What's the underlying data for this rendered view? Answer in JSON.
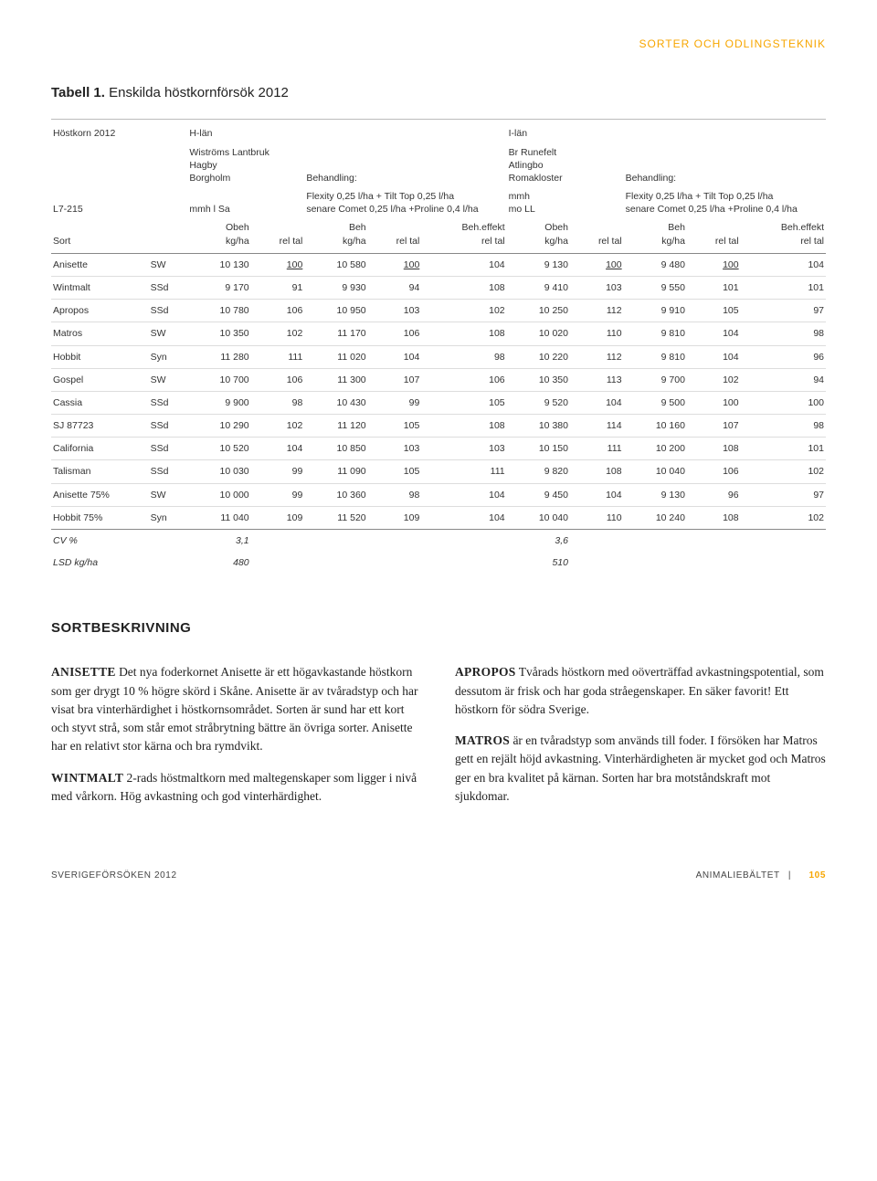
{
  "header": {
    "text": "SORTER OCH ODLINGSTEKNIK"
  },
  "caption": {
    "prefix": "Tabell 1.",
    "title": "Enskilda höstkornförsök 2012"
  },
  "table": {
    "top": {
      "title": "Höstkorn 2012",
      "hlan": "H-län",
      "ilan": "I-län",
      "farmH": [
        "Wiströms Lantbruk",
        "Hagby",
        "Borgholm"
      ],
      "farmI": [
        "Br Runefelt",
        "Atlingbo",
        "Romakloster"
      ],
      "beh": "Behandling:",
      "code": "L7-215",
      "soilH": "mmh l Sa",
      "soilI": [
        "mmh",
        "mo LL"
      ],
      "treat1": "Flexity 0,25 l/ha + Tilt Top 0,25 l/ha",
      "treat2": "senare Comet 0,25 l/ha +Proline 0,4 l/ha",
      "sort": "Sort",
      "obeh": [
        "Obeh",
        "kg/ha"
      ],
      "reltal": "rel tal",
      "beh2": [
        "Beh",
        "kg/ha"
      ],
      "eff": [
        "Beh.effekt",
        "rel tal"
      ]
    },
    "rows": [
      {
        "n": "Anisette",
        "t": "SW",
        "a": "10 130",
        "b": "100",
        "bu": true,
        "c": "10 580",
        "d": "100",
        "du": true,
        "e": "104",
        "f": "9 130",
        "g": "100",
        "gu": true,
        "h": "9 480",
        "i": "100",
        "iu": true,
        "j": "104"
      },
      {
        "n": "Wintmalt",
        "t": "SSd",
        "a": "9 170",
        "b": "91",
        "c": "9 930",
        "d": "94",
        "e": "108",
        "f": "9 410",
        "g": "103",
        "h": "9 550",
        "i": "101",
        "j": "101"
      },
      {
        "n": "Apropos",
        "t": "SSd",
        "a": "10 780",
        "b": "106",
        "c": "10 950",
        "d": "103",
        "e": "102",
        "f": "10 250",
        "g": "112",
        "h": "9 910",
        "i": "105",
        "j": "97"
      },
      {
        "n": "Matros",
        "t": "SW",
        "a": "10 350",
        "b": "102",
        "c": "11 170",
        "d": "106",
        "e": "108",
        "f": "10 020",
        "g": "110",
        "h": "9 810",
        "i": "104",
        "j": "98"
      },
      {
        "n": "Hobbit",
        "t": "Syn",
        "a": "11 280",
        "b": "111",
        "c": "11 020",
        "d": "104",
        "e": "98",
        "f": "10 220",
        "g": "112",
        "h": "9 810",
        "i": "104",
        "j": "96"
      },
      {
        "n": "Gospel",
        "t": "SW",
        "a": "10 700",
        "b": "106",
        "c": "11 300",
        "d": "107",
        "e": "106",
        "f": "10 350",
        "g": "113",
        "h": "9 700",
        "i": "102",
        "j": "94"
      },
      {
        "n": "Cassia",
        "t": "SSd",
        "a": "9 900",
        "b": "98",
        "c": "10 430",
        "d": "99",
        "e": "105",
        "f": "9 520",
        "g": "104",
        "h": "9 500",
        "i": "100",
        "j": "100"
      },
      {
        "n": "SJ 87723",
        "t": "SSd",
        "a": "10 290",
        "b": "102",
        "c": "11 120",
        "d": "105",
        "e": "108",
        "f": "10 380",
        "g": "114",
        "h": "10 160",
        "i": "107",
        "j": "98"
      },
      {
        "n": "California",
        "t": "SSd",
        "a": "10 520",
        "b": "104",
        "c": "10 850",
        "d": "103",
        "e": "103",
        "f": "10 150",
        "g": "111",
        "h": "10 200",
        "i": "108",
        "j": "101"
      },
      {
        "n": "Talisman",
        "t": "SSd",
        "a": "10 030",
        "b": "99",
        "c": "11 090",
        "d": "105",
        "e": "111",
        "f": "9 820",
        "g": "108",
        "h": "10 040",
        "i": "106",
        "j": "102"
      },
      {
        "n": "Anisette 75%",
        "t": "SW",
        "a": "10 000",
        "b": "99",
        "c": "10 360",
        "d": "98",
        "e": "104",
        "f": "9 450",
        "g": "104",
        "h": "9 130",
        "i": "96",
        "j": "97"
      },
      {
        "n": "Hobbit 75%",
        "t": "Syn",
        "a": "11 040",
        "b": "109",
        "c": "11 520",
        "d": "109",
        "e": "104",
        "f": "10 040",
        "g": "110",
        "h": "10 240",
        "i": "108",
        "j": "102"
      }
    ],
    "foot": [
      {
        "label": "CV %",
        "v1": "3,1",
        "v2": "3,6"
      },
      {
        "label": "LSD kg/ha",
        "v1": "480",
        "v2": "510"
      }
    ]
  },
  "section": {
    "title": "SORTBESKRIVNING"
  },
  "body": {
    "p1": {
      "lead": "ANISETTE",
      "text": " Det nya foderkornet Anisette är ett högavkastande höstkorn som ger drygt 10 % högre skörd i Skåne. Anisette är av tvåradstyp och har visat bra vinterhärdighet i höstkornsområdet. Sorten är sund har ett kort och styvt strå, som står emot stråbrytning bättre än övriga sorter. Anisette har en relativt stor kärna och bra rymdvikt."
    },
    "p2": {
      "lead": "WINTMALT",
      "text": " 2-rads höstmaltkorn med malt­egenskaper som ligger i nivå med vårkorn. Hög avkastning och god vinterhärdighet."
    },
    "p3": {
      "lead": "APROPOS",
      "text": " Tvårads höstkorn med oöverträf­fad avkastningspotential, som dessutom är frisk och har goda stråegenskaper. En säker favorit! Ett höstkorn för södra Sverige."
    },
    "p4": {
      "lead": "MATROS",
      "text": " är en tvåradstyp som används till foder. I försöken har Matros gett en rejält höjd avkastning. Vinterhärdigheten är mycket god och Matros ger en bra kvalitet på kärnan. Sorten har bra motståndskraft mot sjukdomar."
    }
  },
  "footer": {
    "left": "SVERIGEFÖRSÖKEN 2012",
    "rightLabel": "ANIMALIEBÄLTET",
    "sep": "|",
    "page": "105"
  },
  "colors": {
    "accent": "#f7a600",
    "rule": "#888888",
    "rowline": "#dddddd",
    "text": "#222222"
  }
}
